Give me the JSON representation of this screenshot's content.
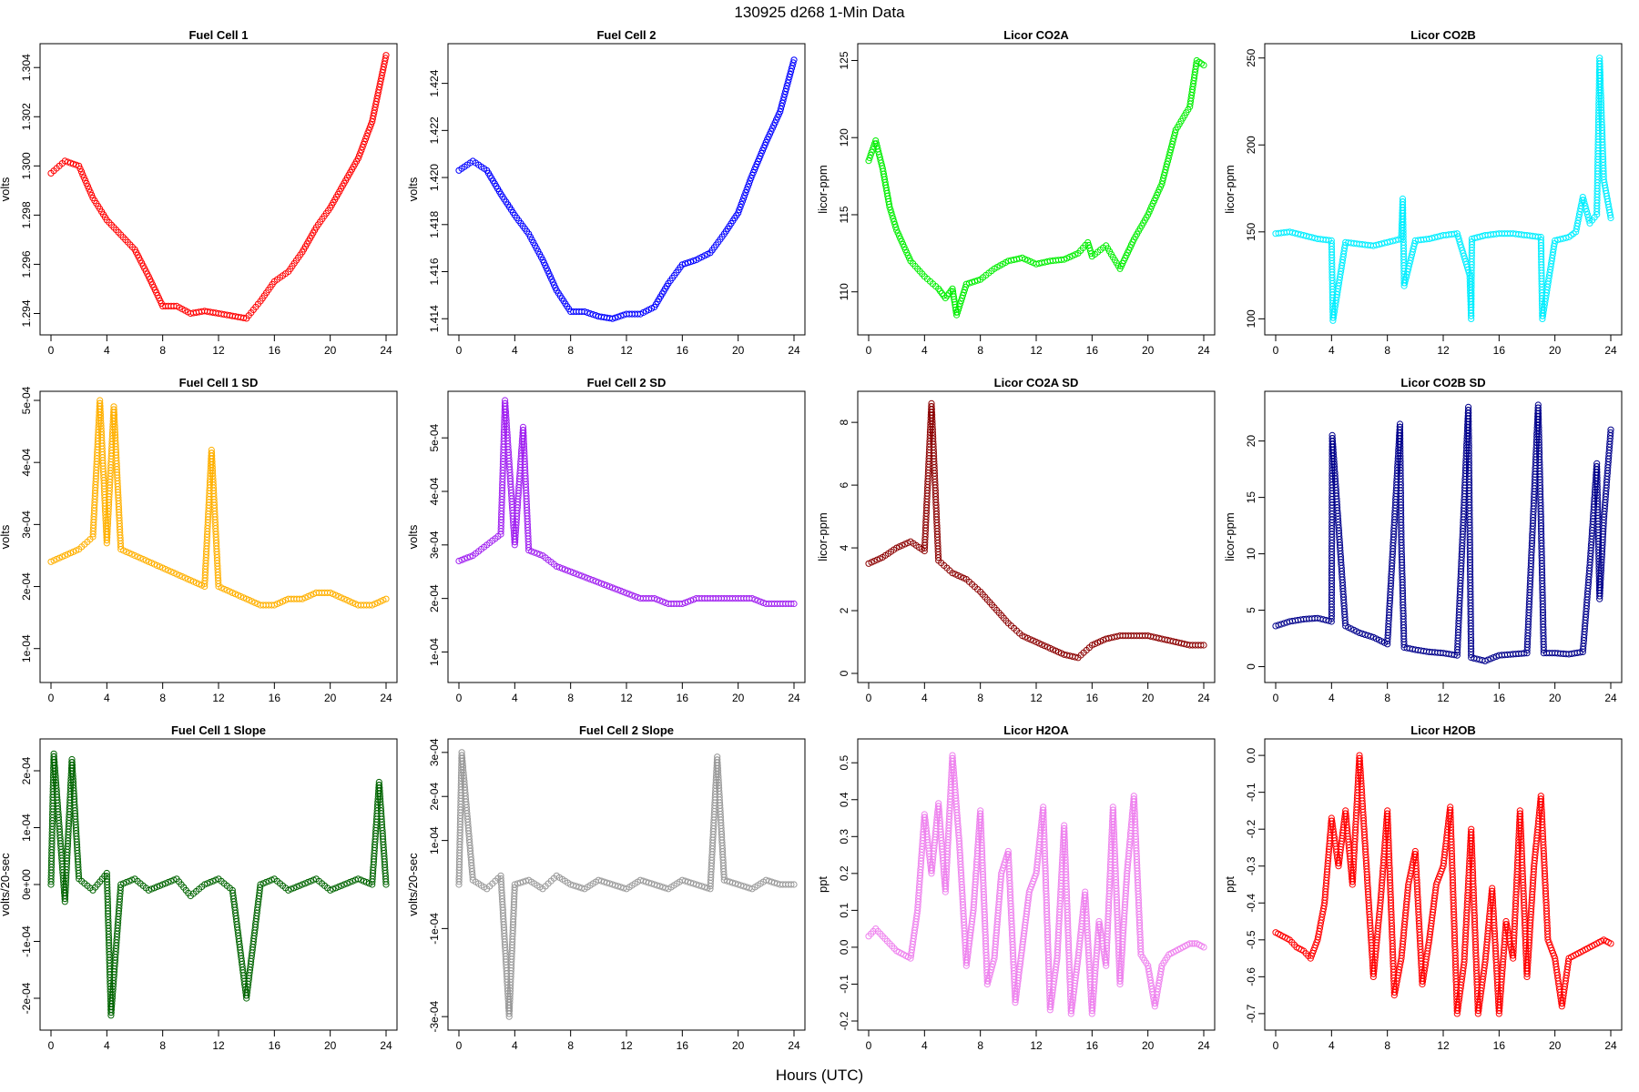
{
  "figure": {
    "title": "130925    d268    1-Min Data",
    "xlabel": "Hours (UTC)"
  },
  "chart_data": [
    {
      "type": "scatter",
      "title": "Fuel Cell 1",
      "xlabel": "",
      "ylabel": "volts",
      "color": "#ff0000",
      "xlim": [
        0,
        24
      ],
      "ylim": [
        1.2935,
        1.3046
      ],
      "xticks": [
        0,
        4,
        8,
        12,
        16,
        20,
        24
      ],
      "yticks": [
        "1.294",
        "1.296",
        "1.298",
        "1.300",
        "1.302",
        "1.304"
      ],
      "x": [
        0,
        1,
        2,
        3,
        4,
        5,
        6,
        7,
        8,
        9,
        10,
        11,
        12,
        13,
        14,
        15,
        16,
        17,
        18,
        19,
        20,
        21,
        22,
        23,
        24
      ],
      "y": [
        1.2997,
        1.3002,
        1.3,
        1.2987,
        1.2978,
        1.2972,
        1.2966,
        1.2955,
        1.2943,
        1.2943,
        1.294,
        1.2941,
        1.294,
        1.2939,
        1.2938,
        1.2945,
        1.2953,
        1.2957,
        1.2965,
        1.2975,
        1.2983,
        1.2993,
        1.3003,
        1.3018,
        1.3045
      ]
    },
    {
      "type": "scatter",
      "title": "Fuel Cell 2",
      "xlabel": "",
      "ylabel": "volts",
      "color": "#0000ff",
      "xlim": [
        0,
        24
      ],
      "ylim": [
        1.4137,
        1.4253
      ],
      "xticks": [
        0,
        4,
        8,
        12,
        16,
        20,
        24
      ],
      "yticks": [
        "1.414",
        "1.416",
        "1.418",
        "1.420",
        "1.422",
        "1.424"
      ],
      "x": [
        0,
        1,
        2,
        3,
        4,
        5,
        6,
        7,
        8,
        9,
        10,
        11,
        12,
        13,
        14,
        15,
        16,
        17,
        18,
        19,
        20,
        21,
        22,
        23,
        24
      ],
      "y": [
        1.4203,
        1.4207,
        1.4203,
        1.4193,
        1.4184,
        1.4176,
        1.4165,
        1.4152,
        1.4143,
        1.4143,
        1.4141,
        1.414,
        1.4142,
        1.4142,
        1.4145,
        1.4155,
        1.4163,
        1.4165,
        1.4168,
        1.4176,
        1.4185,
        1.4201,
        1.4215,
        1.4228,
        1.425
      ]
    },
    {
      "type": "scatter",
      "title": "Licor CO2A",
      "xlabel": "",
      "ylabel": "licor-ppm",
      "color": "#00ee00",
      "xlim": [
        0,
        24
      ],
      "ylim": [
        107.8,
        125.5
      ],
      "xticks": [
        0,
        4,
        8,
        12,
        16,
        20,
        24
      ],
      "yticks": [
        "110",
        "115",
        "120",
        "125"
      ],
      "x": [
        0,
        0.5,
        1,
        1.5,
        2,
        3,
        4,
        5,
        5.5,
        6,
        6.3,
        7,
        8,
        9,
        10,
        11,
        12,
        13,
        14,
        15,
        15.7,
        16,
        17,
        18,
        19,
        20,
        21,
        22,
        23,
        23.5,
        24
      ],
      "y": [
        118.5,
        119.8,
        118,
        115.5,
        114,
        112,
        111,
        110.2,
        109.6,
        110.2,
        108.5,
        110.5,
        110.8,
        111.5,
        112,
        112.2,
        111.8,
        112,
        112.1,
        112.5,
        113.2,
        112.3,
        113,
        111.5,
        113.4,
        115,
        117,
        120.5,
        122,
        125,
        124.7
      ]
    },
    {
      "type": "scatter",
      "title": "Licor CO2B",
      "xlabel": "",
      "ylabel": "licor-ppm",
      "color": "#00eeff",
      "xlim": [
        0,
        24
      ],
      "ylim": [
        96,
        253
      ],
      "xticks": [
        0,
        4,
        8,
        12,
        16,
        20,
        24
      ],
      "yticks": [
        "100",
        "150",
        "200",
        "250"
      ],
      "x": [
        0,
        1,
        2,
        3,
        4,
        4.05,
        4.1,
        5,
        6,
        7,
        8,
        9,
        9.1,
        9.2,
        10,
        11,
        12,
        13,
        13.9,
        14,
        14.05,
        15,
        16,
        17,
        18,
        19,
        19.05,
        19.1,
        20,
        21,
        21.5,
        22,
        22.5,
        23,
        23.2,
        23.5,
        24
      ],
      "y": [
        149,
        150,
        148,
        146,
        145,
        122,
        99,
        144,
        143,
        142,
        144,
        146,
        169,
        119,
        145,
        146,
        148,
        149,
        125,
        100,
        146,
        148,
        149,
        149,
        148,
        147,
        120,
        100,
        145,
        147,
        150,
        170,
        155,
        160,
        250,
        180,
        158
      ]
    },
    {
      "type": "scatter",
      "title": "Fuel Cell 1 SD",
      "xlabel": "",
      "ylabel": "volts",
      "color": "#ffb000",
      "xlim": [
        0,
        24
      ],
      "ylim": [
        6e-05,
        0.0005
      ],
      "xticks": [
        0,
        4,
        8,
        12,
        16,
        20,
        24
      ],
      "yticks": [
        "1e-04",
        "2e-04",
        "3e-04",
        "4e-04",
        "5e-04"
      ],
      "x": [
        0,
        1,
        2,
        3,
        3.5,
        4,
        4.5,
        5,
        6,
        7,
        8,
        9,
        10,
        11,
        11.5,
        12,
        13,
        14,
        15,
        16,
        17,
        18,
        19,
        20,
        21,
        22,
        23,
        24
      ],
      "y": [
        0.00024,
        0.00025,
        0.00026,
        0.00028,
        0.0005,
        0.00027,
        0.00049,
        0.00026,
        0.00025,
        0.00024,
        0.00023,
        0.00022,
        0.00021,
        0.0002,
        0.00042,
        0.0002,
        0.00019,
        0.00018,
        0.00017,
        0.00017,
        0.00018,
        0.00018,
        0.00019,
        0.00019,
        0.00018,
        0.00017,
        0.00017,
        0.00018
      ]
    },
    {
      "type": "scatter",
      "title": "Fuel Cell 2 SD",
      "xlabel": "",
      "ylabel": "volts",
      "color": "#a020f0",
      "xlim": [
        0,
        24
      ],
      "ylim": [
        6e-05,
        0.00057
      ],
      "xticks": [
        0,
        4,
        8,
        12,
        16,
        20,
        24
      ],
      "yticks": [
        "1e-04",
        "2e-04",
        "3e-04",
        "4e-04",
        "5e-04"
      ],
      "x": [
        0,
        1,
        2,
        3,
        3.3,
        4,
        4.6,
        5,
        6,
        7,
        8,
        9,
        10,
        11,
        12,
        13,
        14,
        15,
        16,
        17,
        18,
        19,
        20,
        21,
        22,
        23,
        24
      ],
      "y": [
        0.00027,
        0.00028,
        0.0003,
        0.00032,
        0.00057,
        0.0003,
        0.00052,
        0.00029,
        0.00028,
        0.00026,
        0.00025,
        0.00024,
        0.00023,
        0.00022,
        0.00021,
        0.0002,
        0.0002,
        0.00019,
        0.00019,
        0.0002,
        0.0002,
        0.0002,
        0.0002,
        0.0002,
        0.00019,
        0.00019,
        0.00019
      ]
    },
    {
      "type": "scatter",
      "title": "Licor CO2A SD",
      "xlabel": "",
      "ylabel": "licor-ppm",
      "color": "#8b0000",
      "xlim": [
        0,
        24
      ],
      "ylim": [
        0,
        8.7
      ],
      "xticks": [
        0,
        4,
        8,
        12,
        16,
        20,
        24
      ],
      "yticks": [
        "0",
        "2",
        "4",
        "6",
        "8"
      ],
      "x": [
        0,
        1,
        2,
        3,
        4,
        4.5,
        5,
        6,
        7,
        8,
        9,
        10,
        11,
        12,
        13,
        14,
        15,
        16,
        17,
        18,
        19,
        20,
        21,
        22,
        23,
        24
      ],
      "y": [
        3.5,
        3.7,
        4,
        4.2,
        3.9,
        8.6,
        3.6,
        3.2,
        3,
        2.6,
        2.1,
        1.6,
        1.2,
        1,
        0.8,
        0.6,
        0.5,
        0.9,
        1.1,
        1.2,
        1.2,
        1.2,
        1.1,
        1,
        0.9,
        0.9
      ]
    },
    {
      "type": "scatter",
      "title": "Licor CO2B SD",
      "xlabel": "",
      "ylabel": "licor-ppm",
      "color": "#00008b",
      "xlim": [
        0,
        24
      ],
      "ylim": [
        -0.6,
        23.6
      ],
      "xticks": [
        0,
        4,
        8,
        12,
        16,
        20,
        24
      ],
      "yticks": [
        "0",
        "5",
        "10",
        "15",
        "20"
      ],
      "x": [
        0,
        1,
        2,
        3,
        4,
        4.05,
        5,
        6,
        7,
        8,
        8.9,
        9,
        9.2,
        10,
        11,
        12,
        13,
        13.8,
        14,
        15,
        16,
        17,
        18,
        18.8,
        19,
        19.2,
        20,
        21,
        22,
        22.5,
        23,
        23.2,
        23.5,
        24
      ],
      "y": [
        3.6,
        4,
        4.2,
        4.3,
        4,
        20.5,
        3.6,
        3,
        2.6,
        2,
        21.5,
        11,
        1.7,
        1.5,
        1.3,
        1.2,
        1,
        23,
        0.8,
        0.5,
        1,
        1.1,
        1.2,
        23.2,
        13,
        1.2,
        1.2,
        1.1,
        1.3,
        9,
        18,
        6,
        13,
        21
      ]
    },
    {
      "type": "scatter",
      "title": "Fuel Cell 1 Slope",
      "xlabel": "",
      "ylabel": "volts/20-sec",
      "color": "#006400",
      "xlim": [
        0,
        24
      ],
      "ylim": [
        -0.00024,
        0.00024
      ],
      "xticks": [
        0,
        4,
        8,
        12,
        16,
        20,
        24
      ],
      "yticks": [
        "-2e-04",
        "-1e-04",
        "0e+00",
        "1e-04",
        "2e-04"
      ],
      "x": [
        0,
        0.2,
        1,
        1.5,
        2,
        3,
        4,
        4.3,
        5,
        6,
        7,
        8,
        9,
        10,
        11,
        12,
        13,
        14,
        15,
        16,
        17,
        18,
        19,
        20,
        21,
        22,
        23,
        23.5,
        24
      ],
      "y": [
        0,
        0.00023,
        -3e-05,
        0.00022,
        1e-05,
        -1e-05,
        2e-05,
        -0.00023,
        0,
        1e-05,
        -1e-05,
        0,
        1e-05,
        -2e-05,
        0,
        1e-05,
        -1e-05,
        -0.0002,
        0,
        1e-05,
        -1e-05,
        0,
        1e-05,
        -1e-05,
        0,
        1e-05,
        0,
        0.00018,
        0
      ]
    },
    {
      "type": "scatter",
      "title": "Fuel Cell 2 Slope",
      "xlabel": "",
      "ylabel": "volts/20-sec",
      "color": "#999999",
      "xlim": [
        0,
        24
      ],
      "ylim": [
        -0.00031,
        0.00031
      ],
      "xticks": [
        0,
        4,
        8,
        12,
        16,
        20,
        24
      ],
      "yticks": [
        "-3e-04",
        "-1e-04",
        "1e-04",
        "2e-04",
        "3e-04"
      ],
      "x": [
        0,
        0.2,
        1,
        2,
        3,
        3.6,
        4,
        5,
        6,
        7,
        8,
        9,
        10,
        11,
        12,
        13,
        14,
        15,
        16,
        17,
        18,
        18.5,
        19,
        20,
        21,
        22,
        23,
        24
      ],
      "y": [
        0,
        0.0003,
        1e-05,
        -1e-05,
        2e-05,
        -0.0003,
        0,
        1e-05,
        -1e-05,
        2e-05,
        0,
        -1e-05,
        1e-05,
        0,
        -1e-05,
        1e-05,
        0,
        -1e-05,
        1e-05,
        0,
        -1e-05,
        0.00029,
        1e-05,
        0,
        -1e-05,
        1e-05,
        0,
        0
      ]
    },
    {
      "type": "scatter",
      "title": "Licor H2OA",
      "xlabel": "",
      "ylabel": "ppt",
      "color": "#ee82ee",
      "xlim": [
        0,
        24
      ],
      "ylim": [
        -0.2,
        0.54
      ],
      "xticks": [
        0,
        4,
        8,
        12,
        16,
        20,
        24
      ],
      "yticks": [
        "-0.2",
        "-0.1",
        "0.0",
        "0.1",
        "0.2",
        "0.3",
        "0.4",
        "0.5"
      ],
      "x": [
        0,
        0.5,
        1,
        1.5,
        2,
        2.5,
        3,
        3.5,
        4,
        4.5,
        5,
        5.5,
        6,
        6.5,
        7,
        7.5,
        8,
        8.5,
        9,
        9.5,
        10,
        10.5,
        11,
        11.5,
        12,
        12.5,
        13,
        13.5,
        14,
        14.5,
        15,
        15.5,
        16,
        16.5,
        17,
        17.5,
        18,
        18.5,
        19,
        19.5,
        20,
        20.5,
        21,
        21.5,
        22,
        22.5,
        23,
        23.5,
        24
      ],
      "y": [
        0.03,
        0.05,
        0.03,
        0.01,
        -0.01,
        -0.02,
        -0.03,
        0.1,
        0.36,
        0.2,
        0.39,
        0.15,
        0.52,
        0.28,
        -0.05,
        0.1,
        0.37,
        -0.1,
        -0.03,
        0.2,
        0.26,
        -0.15,
        0,
        0.15,
        0.2,
        0.38,
        -0.17,
        -0.03,
        0.33,
        -0.18,
        -0.03,
        0.15,
        -0.18,
        0.07,
        -0.05,
        0.38,
        -0.1,
        0.2,
        0.41,
        -0.02,
        -0.05,
        -0.16,
        -0.05,
        -0.02,
        -0.01,
        0,
        0.01,
        0.01,
        0
      ]
    },
    {
      "type": "scatter",
      "title": "Licor H2OB",
      "xlabel": "",
      "ylabel": "ppt",
      "color": "#ff0000",
      "xlim": [
        0,
        24
      ],
      "ylim": [
        -0.72,
        0.02
      ],
      "xticks": [
        0,
        4,
        8,
        12,
        16,
        20,
        24
      ],
      "yticks": [
        "-0.7",
        "-0.6",
        "-0.5",
        "-0.4",
        "-0.3",
        "-0.2",
        "-0.1",
        "0.0"
      ],
      "x": [
        0,
        0.5,
        1,
        1.5,
        2,
        2.5,
        3,
        3.5,
        4,
        4.5,
        5,
        5.5,
        6,
        6.5,
        7,
        7.5,
        8,
        8.5,
        9,
        9.5,
        10,
        10.5,
        11,
        11.5,
        12,
        12.5,
        13,
        13.5,
        14,
        14.5,
        15,
        15.5,
        16,
        16.5,
        17,
        17.5,
        18,
        18.5,
        19,
        19.5,
        20,
        20.5,
        21,
        21.5,
        22,
        22.5,
        23,
        23.5,
        24
      ],
      "y": [
        -0.48,
        -0.49,
        -0.5,
        -0.52,
        -0.53,
        -0.55,
        -0.5,
        -0.4,
        -0.17,
        -0.3,
        -0.15,
        -0.35,
        0,
        -0.3,
        -0.6,
        -0.4,
        -0.15,
        -0.65,
        -0.55,
        -0.35,
        -0.26,
        -0.62,
        -0.5,
        -0.35,
        -0.3,
        -0.14,
        -0.7,
        -0.56,
        -0.2,
        -0.7,
        -0.56,
        -0.36,
        -0.7,
        -0.45,
        -0.55,
        -0.15,
        -0.6,
        -0.3,
        -0.11,
        -0.5,
        -0.55,
        -0.68,
        -0.55,
        -0.54,
        -0.53,
        -0.52,
        -0.51,
        -0.5,
        -0.51
      ]
    }
  ]
}
